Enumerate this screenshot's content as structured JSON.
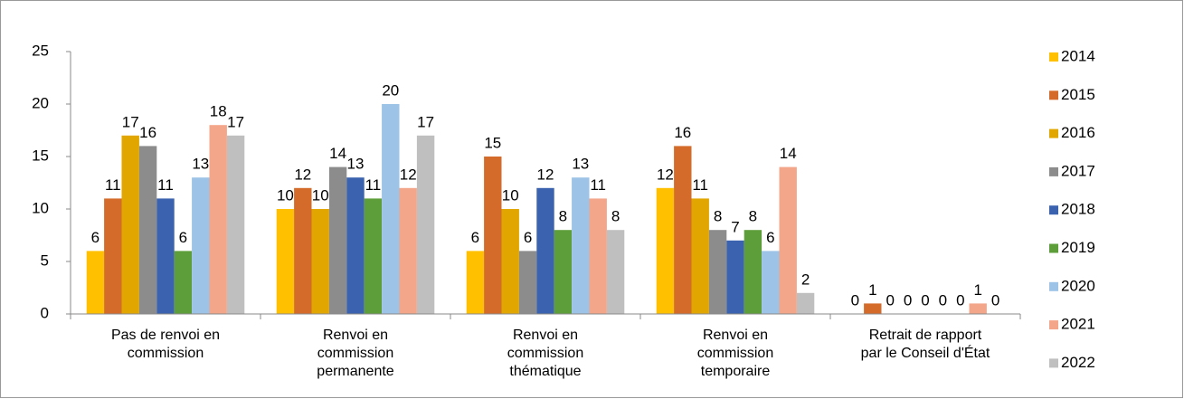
{
  "chart_data": {
    "type": "bar",
    "categories": [
      "Pas de renvoi en commission",
      "Renvoi en commission permanente",
      "Renvoi en commission thématique",
      "Renvoi en commission temporaire",
      "Retrait de rapport par le Conseil d'État"
    ],
    "series": [
      {
        "name": "2014",
        "color": "#FFC000",
        "values": [
          6,
          10,
          6,
          12,
          0
        ]
      },
      {
        "name": "2015",
        "color": "#D46B2A",
        "values": [
          11,
          12,
          15,
          16,
          1
        ]
      },
      {
        "name": "2016",
        "color": "#E2A600",
        "values": [
          17,
          10,
          10,
          11,
          0
        ]
      },
      {
        "name": "2017",
        "color": "#8C8C8C",
        "values": [
          16,
          14,
          6,
          8,
          0
        ]
      },
      {
        "name": "2018",
        "color": "#3A62AE",
        "values": [
          11,
          13,
          12,
          7,
          0
        ]
      },
      {
        "name": "2019",
        "color": "#5E9E3A",
        "values": [
          6,
          11,
          8,
          8,
          0
        ]
      },
      {
        "name": "2020",
        "color": "#9DC3E6",
        "values": [
          13,
          20,
          13,
          6,
          0
        ]
      },
      {
        "name": "2021",
        "color": "#F4A68A",
        "values": [
          18,
          12,
          11,
          14,
          1
        ]
      },
      {
        "name": "2022",
        "color": "#BFBFBF",
        "values": [
          17,
          17,
          8,
          2,
          0
        ]
      }
    ],
    "ylim": [
      0,
      25
    ],
    "yticks": [
      0,
      5,
      10,
      15,
      20,
      25
    ],
    "grid": false,
    "legend": "right"
  }
}
